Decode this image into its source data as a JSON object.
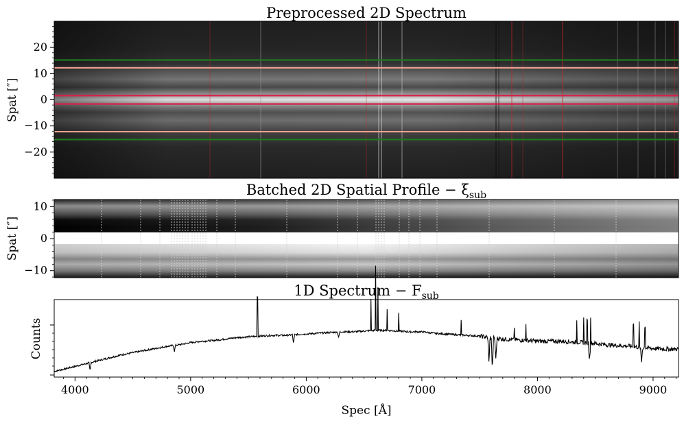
{
  "chart_data": [
    {
      "type": "heatmap",
      "title": "Preprocessed 2D Spectrum",
      "ylabel": "Spat [″]",
      "ylim": [
        -30,
        30
      ],
      "yticks": [
        20,
        10,
        0,
        -10,
        -20
      ],
      "ytick_labels": [
        "20",
        "10",
        "0",
        "−10",
        "−20"
      ],
      "colormap": "gray",
      "overlay_lines": [
        {
          "name": "outer-boundary",
          "y": [
            15.2,
            -15.2
          ],
          "color": "#1e7a1e"
        },
        {
          "name": "middle-boundary",
          "y": [
            12.2,
            -12.2
          ],
          "color": "#f0a090"
        },
        {
          "name": "inner-boundary",
          "y": [
            1.6,
            -1.6
          ],
          "color": "#d4224a"
        }
      ]
    },
    {
      "type": "heatmap",
      "title": "Batched 2D Spatial Profile − ξ",
      "title_subscript": "sub",
      "ylabel": "Spat [″]",
      "ylim": [
        -12.2,
        12.2
      ],
      "yticks": [
        10,
        0,
        -10
      ],
      "ytick_labels": [
        "10",
        "0",
        "−10"
      ],
      "colormap": "gray"
    },
    {
      "type": "line",
      "title": "1D Spectrum − F",
      "title_subscript": "sub",
      "xlabel": "Spec [Å]",
      "ylabel": "Counts",
      "xlim": [
        3820,
        9220
      ],
      "xticks": [
        4000,
        5000,
        6000,
        7000,
        8000,
        9000
      ],
      "xtick_labels": [
        "4000",
        "5000",
        "6000",
        "7000",
        "8000",
        "9000"
      ],
      "series": [
        {
          "name": "F_sub",
          "x": [
            3820,
            3900,
            4000,
            4100,
            4200,
            4300,
            4400,
            4500,
            4600,
            4700,
            4800,
            4900,
            5000,
            5100,
            5200,
            5300,
            5400,
            5500,
            5600,
            5700,
            5800,
            5900,
            6000,
            6100,
            6200,
            6300,
            6400,
            6500,
            6600,
            6700,
            6800,
            6900,
            7000,
            7100,
            7200,
            7300,
            7400,
            7500,
            7600,
            7700,
            7800,
            7900,
            8000,
            8100,
            8200,
            8300,
            8400,
            8500,
            8600,
            8700,
            8800,
            8900,
            9000,
            9100,
            9220
          ],
          "values": [
            0.05,
            0.08,
            0.12,
            0.16,
            0.2,
            0.24,
            0.28,
            0.31,
            0.34,
            0.37,
            0.4,
            0.42,
            0.45,
            0.47,
            0.48,
            0.5,
            0.52,
            0.53,
            0.54,
            0.55,
            0.55,
            0.56,
            0.57,
            0.58,
            0.59,
            0.6,
            0.6,
            0.61,
            0.62,
            0.62,
            0.61,
            0.6,
            0.6,
            0.58,
            0.57,
            0.56,
            0.55,
            0.54,
            0.52,
            0.5,
            0.49,
            0.48,
            0.47,
            0.47,
            0.47,
            0.46,
            0.45,
            0.44,
            0.42,
            0.41,
            0.4,
            0.38,
            0.37,
            0.36,
            0.36
          ]
        }
      ]
    }
  ]
}
